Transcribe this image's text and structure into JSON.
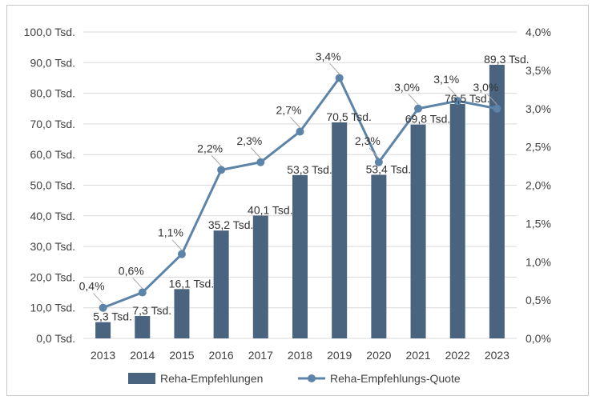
{
  "chart_data": {
    "type": "bar+line",
    "categories": [
      "2013",
      "2014",
      "2015",
      "2016",
      "2017",
      "2018",
      "2019",
      "2020",
      "2021",
      "2022",
      "2023"
    ],
    "series": [
      {
        "name": "Reha-Empfehlungen",
        "type": "bar",
        "axis": "left",
        "values": [
          5.3,
          7.3,
          16.1,
          35.2,
          40.1,
          53.3,
          70.5,
          53.4,
          69.8,
          76.5,
          89.3
        ],
        "labels": [
          "5,3 Tsd.",
          "7,3 Tsd.",
          "16,1 Tsd.",
          "35,2 Tsd.",
          "40,1 Tsd.",
          "53,3 Tsd.",
          "70,5 Tsd.",
          "53,4 Tsd.",
          "69,8 Tsd.",
          "76,5 Tsd.",
          "89,3 Tsd."
        ]
      },
      {
        "name": "Reha-Empfehlungs-Quote",
        "type": "line",
        "axis": "right",
        "values": [
          0.4,
          0.6,
          1.1,
          2.2,
          2.3,
          2.7,
          3.4,
          2.3,
          3.0,
          3.1,
          3.0
        ],
        "labels": [
          "0,4%",
          "0,6%",
          "1,1%",
          "2,2%",
          "2,3%",
          "2,7%",
          "3,4%",
          "2,3%",
          "3,0%",
          "3,1%",
          "3,0%"
        ]
      }
    ],
    "y_left": {
      "range": [
        0,
        100
      ],
      "ticks": [
        "0,0 Tsd.",
        "10,0 Tsd.",
        "20,0 Tsd.",
        "30,0 Tsd.",
        "40,0 Tsd.",
        "50,0 Tsd.",
        "60,0 Tsd.",
        "70,0 Tsd.",
        "80,0 Tsd.",
        "90,0 Tsd.",
        "100,0 Tsd."
      ]
    },
    "y_right": {
      "range": [
        0,
        4
      ],
      "ticks": [
        "0,0%",
        "0,5%",
        "1,0%",
        "1,5%",
        "2,0%",
        "2,5%",
        "3,0%",
        "3,5%",
        "4,0%"
      ]
    },
    "grid": true,
    "legend": "bottom-center",
    "colors": {
      "bar": "#4a6480",
      "line": "#5c84a8",
      "grid": "#d9d9d9",
      "text": "#333333"
    }
  }
}
